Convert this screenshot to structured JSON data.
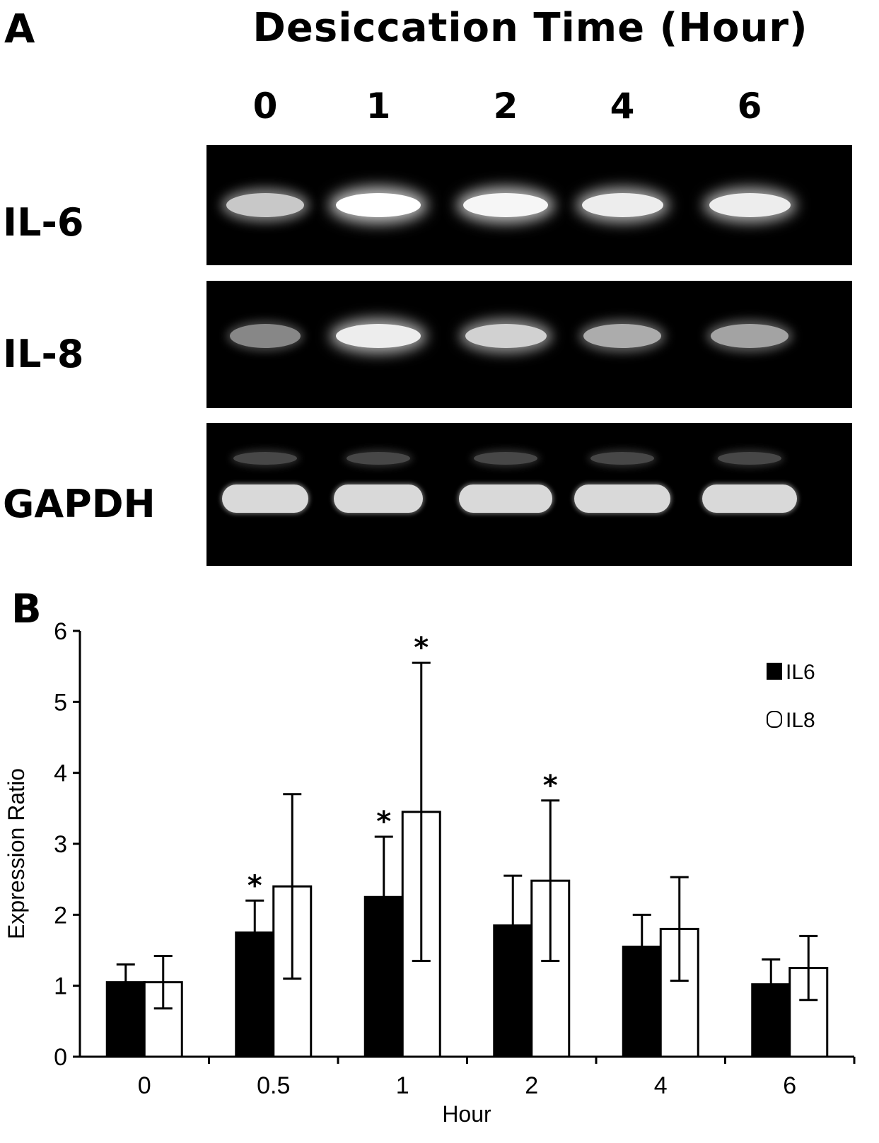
{
  "panel_a": {
    "letter": "A",
    "title": "Desiccation Time (Hour)",
    "lanes": [
      "0",
      "1",
      "2",
      "4",
      "6"
    ],
    "genes": [
      {
        "label": "IL-6",
        "intensity": [
          0.7,
          1.0,
          0.95,
          0.9,
          0.9
        ]
      },
      {
        "label": "IL-8",
        "intensity": [
          0.35,
          0.9,
          0.75,
          0.55,
          0.5
        ]
      },
      {
        "label": "GAPDH",
        "intensity": [
          0.85,
          0.85,
          0.85,
          0.85,
          0.85
        ]
      }
    ]
  },
  "panel_b": {
    "letter": "B"
  },
  "chart_data": {
    "type": "bar",
    "categories": [
      "0",
      "0.5",
      "1",
      "2",
      "4",
      "6"
    ],
    "series": [
      {
        "name": "IL6",
        "fill": "#000000",
        "values": [
          1.05,
          1.75,
          2.25,
          1.85,
          1.55,
          1.02
        ],
        "error": [
          0.25,
          0.45,
          0.85,
          0.7,
          0.45,
          0.35
        ],
        "significant": [
          false,
          true,
          true,
          false,
          false,
          false
        ]
      },
      {
        "name": "IL8",
        "fill": "#ffffff",
        "values": [
          1.05,
          2.4,
          3.45,
          2.48,
          1.8,
          1.25
        ],
        "error": [
          0.37,
          1.3,
          2.1,
          1.13,
          0.73,
          0.45
        ],
        "significant": [
          false,
          false,
          true,
          true,
          false,
          false
        ]
      }
    ],
    "xlabel": "Hour",
    "ylabel": "Expression Ratio",
    "ylim": [
      0,
      6
    ],
    "yticks": [
      "0",
      "1",
      "2",
      "3",
      "4",
      "5",
      "6"
    ],
    "significance_marker": "*",
    "legend_position": "top-right",
    "grid": false
  }
}
